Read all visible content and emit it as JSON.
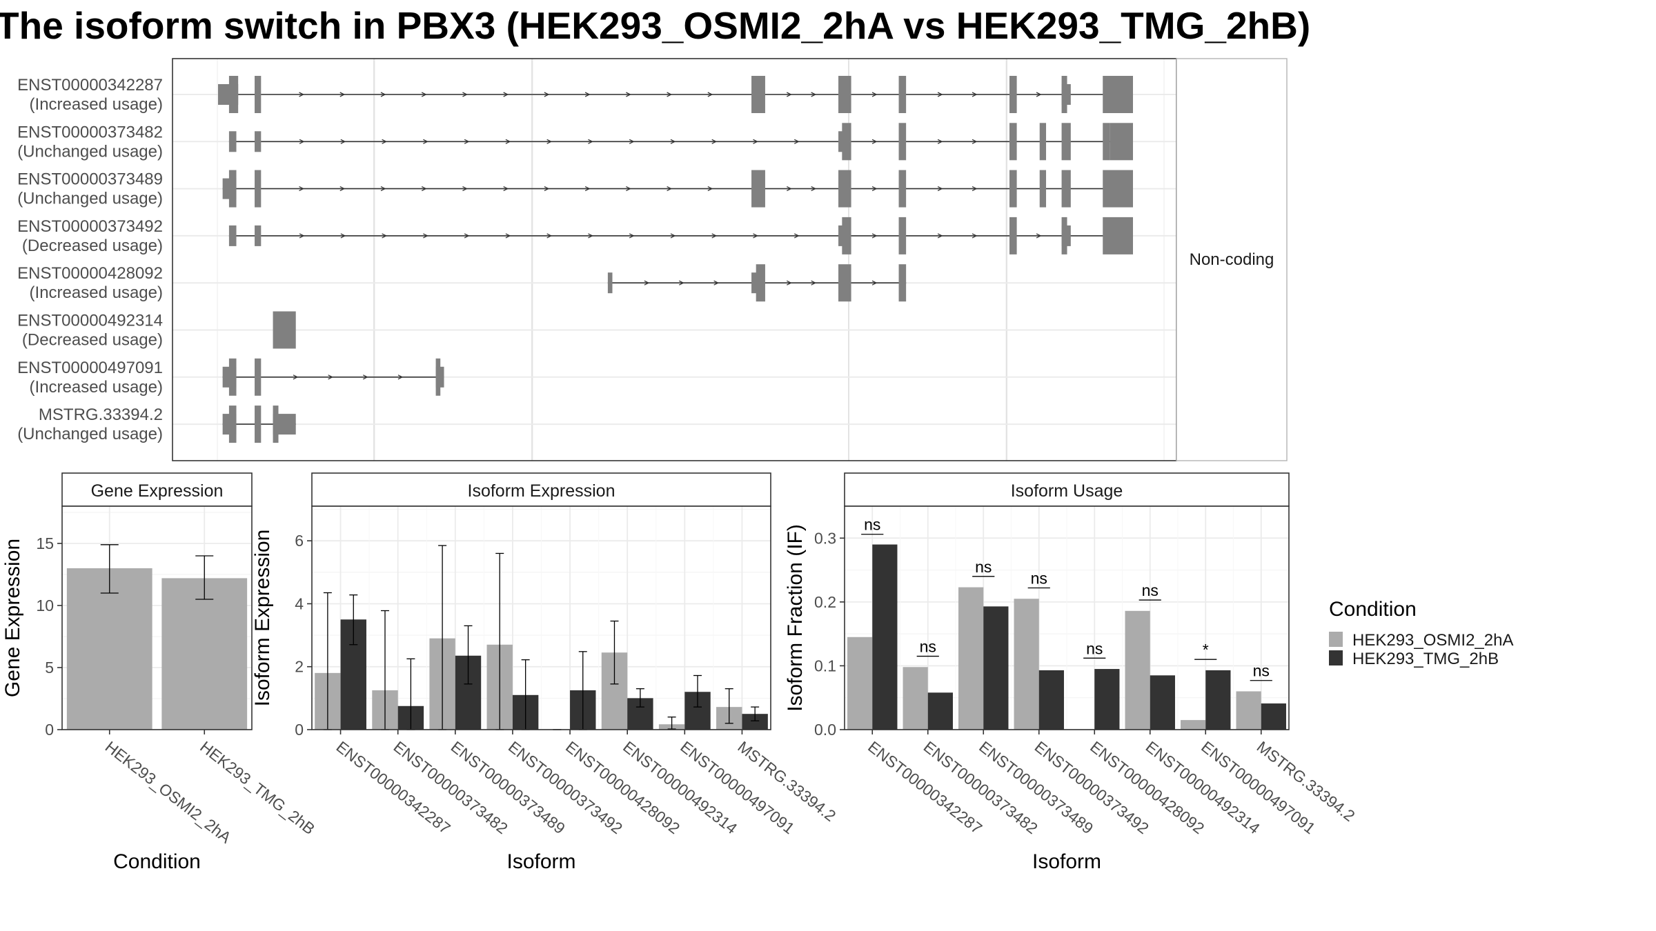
{
  "title": "The isoform switch in PBX3 (HEK293_OSMI2_2hA vs HEK293_TMG_2hB)",
  "colors": {
    "cond_a": "#ababab",
    "cond_b": "#333333",
    "exon": "#808080",
    "grid": "#ebebeb",
    "frame": "#333333"
  },
  "structure": {
    "side_label": "Non-coding",
    "isoforms": [
      {
        "id": "ENST00000342287",
        "usage": "(Increased usage)",
        "exons": [
          [
            0.0,
            0.022,
            "b"
          ],
          [
            0.012,
            0.022,
            "t"
          ],
          [
            0.04,
            0.047,
            "t"
          ],
          [
            0.583,
            0.598,
            "t"
          ],
          [
            0.678,
            0.692,
            "t"
          ],
          [
            0.744,
            0.752,
            "t"
          ],
          [
            0.865,
            0.873,
            "t"
          ],
          [
            0.922,
            0.928,
            "t"
          ],
          [
            0.922,
            0.932,
            "b"
          ],
          [
            0.967,
            1.0,
            "t"
          ]
        ]
      },
      {
        "id": "ENST00000373482",
        "usage": "(Unchanged usage)",
        "exons": [
          [
            0.012,
            0.02,
            "b"
          ],
          [
            0.04,
            0.047,
            "b"
          ],
          [
            0.678,
            0.69,
            "b"
          ],
          [
            0.682,
            0.692,
            "t"
          ],
          [
            0.744,
            0.752,
            "t"
          ],
          [
            0.865,
            0.873,
            "t"
          ],
          [
            0.898,
            0.905,
            "t"
          ],
          [
            0.922,
            0.932,
            "t"
          ],
          [
            0.967,
            0.975,
            "t"
          ],
          [
            0.975,
            1.0,
            "t"
          ]
        ]
      },
      {
        "id": "ENST00000373489",
        "usage": "(Unchanged usage)",
        "exons": [
          [
            0.005,
            0.02,
            "b"
          ],
          [
            0.012,
            0.02,
            "t"
          ],
          [
            0.04,
            0.047,
            "t"
          ],
          [
            0.583,
            0.598,
            "t"
          ],
          [
            0.678,
            0.692,
            "t"
          ],
          [
            0.744,
            0.752,
            "t"
          ],
          [
            0.865,
            0.873,
            "t"
          ],
          [
            0.898,
            0.905,
            "t"
          ],
          [
            0.922,
            0.932,
            "t"
          ],
          [
            0.967,
            1.0,
            "t"
          ]
        ]
      },
      {
        "id": "ENST00000373492",
        "usage": "(Decreased usage)",
        "exons": [
          [
            0.012,
            0.02,
            "b"
          ],
          [
            0.04,
            0.047,
            "b"
          ],
          [
            0.678,
            0.69,
            "b"
          ],
          [
            0.682,
            0.692,
            "t"
          ],
          [
            0.744,
            0.752,
            "t"
          ],
          [
            0.865,
            0.873,
            "t"
          ],
          [
            0.922,
            0.928,
            "t"
          ],
          [
            0.922,
            0.932,
            "b"
          ],
          [
            0.967,
            1.0,
            "t"
          ]
        ]
      },
      {
        "id": "ENST00000428092",
        "usage": "(Increased usage)",
        "exons": [
          [
            0.426,
            0.431,
            "b"
          ],
          [
            0.583,
            0.59,
            "b"
          ],
          [
            0.588,
            0.598,
            "t"
          ],
          [
            0.678,
            0.692,
            "t"
          ],
          [
            0.744,
            0.752,
            "t"
          ]
        ]
      },
      {
        "id": "ENST00000492314",
        "usage": "(Decreased usage)",
        "exons": [
          [
            0.06,
            0.085,
            "t"
          ]
        ]
      },
      {
        "id": "ENST00000497091",
        "usage": "(Increased usage)",
        "exons": [
          [
            0.005,
            0.02,
            "b"
          ],
          [
            0.012,
            0.02,
            "t"
          ],
          [
            0.04,
            0.047,
            "t"
          ],
          [
            0.238,
            0.243,
            "t"
          ],
          [
            0.238,
            0.247,
            "b"
          ]
        ]
      },
      {
        "id": "MSTRG.33394.2",
        "usage": "(Unchanged usage)",
        "exons": [
          [
            0.005,
            0.02,
            "b"
          ],
          [
            0.012,
            0.02,
            "t"
          ],
          [
            0.04,
            0.047,
            "t"
          ],
          [
            0.06,
            0.066,
            "t"
          ],
          [
            0.06,
            0.085,
            "b"
          ]
        ]
      }
    ]
  },
  "chart_data": [
    {
      "type": "bar",
      "title": "Gene Expression",
      "xlabel": "Condition",
      "ylabel": "Gene Expression",
      "ylim": [
        0,
        18
      ],
      "yticks": [
        0,
        5,
        10,
        15
      ],
      "categories": [
        "HEK293_OSMI2_2hA",
        "HEK293_TMG_2hB"
      ],
      "values": [
        13.0,
        12.2
      ],
      "error_low": [
        11.0,
        10.5
      ],
      "error_high": [
        14.9,
        14.0
      ]
    },
    {
      "type": "bar",
      "title": "Isoform Expression",
      "xlabel": "Isoform",
      "ylabel": "Isoform Expression",
      "ylim": [
        0,
        7.1
      ],
      "yticks": [
        0,
        2,
        4,
        6
      ],
      "categories": [
        "ENST00000342287",
        "ENST00000373482",
        "ENST00000373489",
        "ENST00000373492",
        "ENST00000428092",
        "ENST00000492314",
        "ENST00000497091",
        "MSTRG.33394.2"
      ],
      "series": [
        {
          "name": "HEK293_OSMI2_2hA",
          "values": [
            1.8,
            1.25,
            2.9,
            2.7,
            0.0,
            2.45,
            0.17,
            0.72
          ],
          "error_low": [
            0.0,
            0.0,
            0.0,
            0.0,
            0.0,
            1.45,
            0.02,
            0.2
          ],
          "error_high": [
            4.35,
            3.78,
            5.85,
            5.6,
            0.0,
            3.45,
            0.4,
            1.3
          ]
        },
        {
          "name": "HEK293_TMG_2hB",
          "values": [
            3.5,
            0.75,
            2.35,
            1.1,
            1.25,
            1.0,
            1.2,
            0.5
          ],
          "error_low": [
            2.7,
            0.0,
            1.45,
            0.0,
            0.0,
            0.72,
            0.72,
            0.28
          ],
          "error_high": [
            4.28,
            2.25,
            3.3,
            2.22,
            2.48,
            1.3,
            1.72,
            0.72
          ]
        }
      ]
    },
    {
      "type": "bar",
      "title": "Isoform Usage",
      "xlabel": "Isoform",
      "ylabel": "Isoform Fraction (IF)",
      "ylim": [
        0,
        0.35
      ],
      "yticks": [
        0.0,
        0.1,
        0.2,
        0.3
      ],
      "ytick_labels": [
        "0.0",
        "0.1",
        "0.2",
        "0.3"
      ],
      "categories": [
        "ENST00000342287",
        "ENST00000373482",
        "ENST00000373489",
        "ENST00000373492",
        "ENST00000428092",
        "ENST00000492314",
        "ENST00000497091",
        "MSTRG.33394.2"
      ],
      "series": [
        {
          "name": "HEK293_OSMI2_2hA",
          "values": [
            0.145,
            0.098,
            0.223,
            0.205,
            0.0,
            0.186,
            0.015,
            0.06
          ]
        },
        {
          "name": "HEK293_TMG_2hB",
          "values": [
            0.29,
            0.058,
            0.193,
            0.093,
            0.095,
            0.085,
            0.093,
            0.041
          ]
        }
      ],
      "annotations": [
        {
          "category": "ENST00000342287",
          "label": "ns",
          "y": 0.306
        },
        {
          "category": "ENST00000373482",
          "label": "ns",
          "y": 0.115
        },
        {
          "category": "ENST00000373489",
          "label": "ns",
          "y": 0.24
        },
        {
          "category": "ENST00000373492",
          "label": "ns",
          "y": 0.222
        },
        {
          "category": "ENST00000428092",
          "label": "ns",
          "y": 0.112
        },
        {
          "category": "ENST00000492314",
          "label": "ns",
          "y": 0.203
        },
        {
          "category": "ENST00000497091",
          "label": "*",
          "y": 0.11
        },
        {
          "category": "MSTRG.33394.2",
          "label": "ns",
          "y": 0.077
        }
      ]
    }
  ],
  "legend": {
    "title": "Condition",
    "entries": [
      "HEK293_OSMI2_2hA",
      "HEK293_TMG_2hB"
    ]
  }
}
